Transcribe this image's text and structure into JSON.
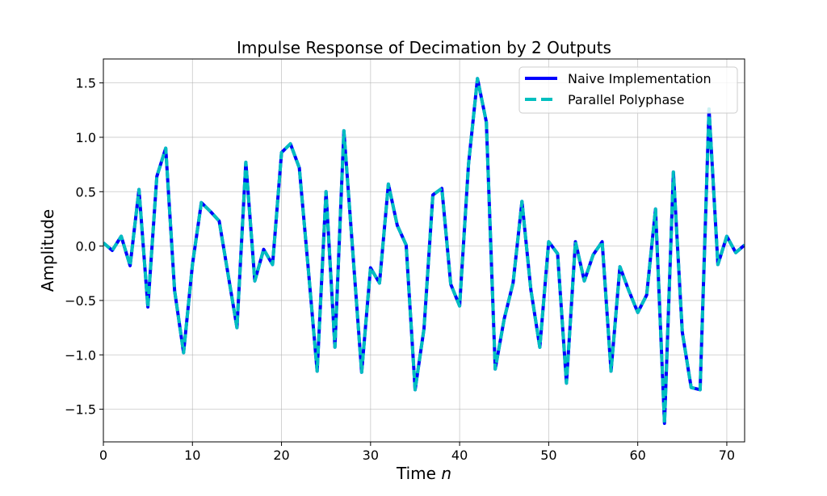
{
  "chart_data": {
    "type": "line",
    "title": "Impulse Response of Decimation by 2 Outputs",
    "xlabel": "Time n",
    "xlabel_parts": {
      "text": "Time ",
      "italic": "n"
    },
    "ylabel": "Amplitude",
    "xlim": [
      0,
      72
    ],
    "ylim": [
      -1.8,
      1.72
    ],
    "grid": true,
    "legend_position": "upper right",
    "x_ticks": [
      0,
      10,
      20,
      30,
      40,
      50,
      60,
      70
    ],
    "x_tick_labels": [
      "0",
      "10",
      "20",
      "30",
      "40",
      "50",
      "60",
      "70"
    ],
    "y_ticks": [
      1.5,
      1.0,
      0.5,
      0.0,
      -0.5,
      -1.0,
      -1.5
    ],
    "y_tick_labels": [
      "1.5",
      "1.0",
      "0.5",
      "0.0",
      "−0.5",
      "−1.0",
      "−1.5"
    ],
    "x": [
      0,
      1,
      2,
      3,
      4,
      5,
      6,
      7,
      8,
      9,
      10,
      11,
      12,
      13,
      14,
      15,
      16,
      17,
      18,
      19,
      20,
      21,
      22,
      23,
      24,
      25,
      26,
      27,
      28,
      29,
      30,
      31,
      32,
      33,
      34,
      35,
      36,
      37,
      38,
      39,
      40,
      41,
      42,
      43,
      44,
      45,
      46,
      47,
      48,
      49,
      50,
      51,
      52,
      53,
      54,
      55,
      56,
      57,
      58,
      59,
      60,
      61,
      62,
      63,
      64,
      65,
      66,
      67,
      68,
      69,
      70,
      71,
      72
    ],
    "series": [
      {
        "name": "Naive Implementation",
        "color": "#0000ff",
        "style": "solid",
        "values": [
          0.03,
          -0.04,
          0.09,
          -0.18,
          0.52,
          -0.56,
          0.64,
          0.9,
          -0.41,
          -0.98,
          -0.17,
          0.4,
          0.32,
          0.23,
          -0.26,
          -0.75,
          0.77,
          -0.32,
          -0.03,
          -0.17,
          0.86,
          0.94,
          0.72,
          -0.2,
          -1.15,
          0.5,
          -0.93,
          1.06,
          -0.05,
          -1.16,
          -0.2,
          -0.34,
          0.57,
          0.19,
          0.01,
          -1.32,
          -0.76,
          0.47,
          0.53,
          -0.35,
          -0.55,
          0.75,
          1.54,
          1.14,
          -1.13,
          -0.67,
          -0.34,
          0.41,
          -0.4,
          -0.93,
          0.04,
          -0.07,
          -1.26,
          0.04,
          -0.32,
          -0.08,
          0.04,
          -1.15,
          -0.19,
          -0.41,
          -0.61,
          -0.45,
          0.34,
          -1.63,
          0.68,
          -0.79,
          -1.3,
          -1.32,
          1.26,
          -0.17,
          0.09,
          -0.06,
          0.01
        ]
      },
      {
        "name": "Parallel Polyphase",
        "color": "#00bfbf",
        "style": "dashed",
        "values": [
          0.03,
          -0.04,
          0.09,
          -0.18,
          0.52,
          -0.56,
          0.64,
          0.9,
          -0.41,
          -0.98,
          -0.17,
          0.4,
          0.32,
          0.23,
          -0.26,
          -0.75,
          0.77,
          -0.32,
          -0.03,
          -0.17,
          0.86,
          0.94,
          0.72,
          -0.2,
          -1.15,
          0.5,
          -0.93,
          1.06,
          -0.05,
          -1.16,
          -0.2,
          -0.34,
          0.57,
          0.19,
          0.01,
          -1.32,
          -0.76,
          0.47,
          0.53,
          -0.35,
          -0.55,
          0.75,
          1.54,
          1.14,
          -1.13,
          -0.67,
          -0.34,
          0.41,
          -0.4,
          -0.93,
          0.04,
          -0.07,
          -1.26,
          0.04,
          -0.32,
          -0.08,
          0.04,
          -1.15,
          -0.19,
          -0.41,
          -0.61,
          -0.45,
          0.34,
          -1.63,
          0.68,
          -0.79,
          -1.3,
          -1.32,
          1.26,
          -0.17,
          0.09,
          -0.06,
          0.01
        ]
      }
    ]
  },
  "legend": {
    "items": [
      {
        "label": "Naive Implementation",
        "color": "#0000ff",
        "style": "solid"
      },
      {
        "label": "Parallel Polyphase",
        "color": "#00bfbf",
        "style": "dashed"
      }
    ]
  }
}
